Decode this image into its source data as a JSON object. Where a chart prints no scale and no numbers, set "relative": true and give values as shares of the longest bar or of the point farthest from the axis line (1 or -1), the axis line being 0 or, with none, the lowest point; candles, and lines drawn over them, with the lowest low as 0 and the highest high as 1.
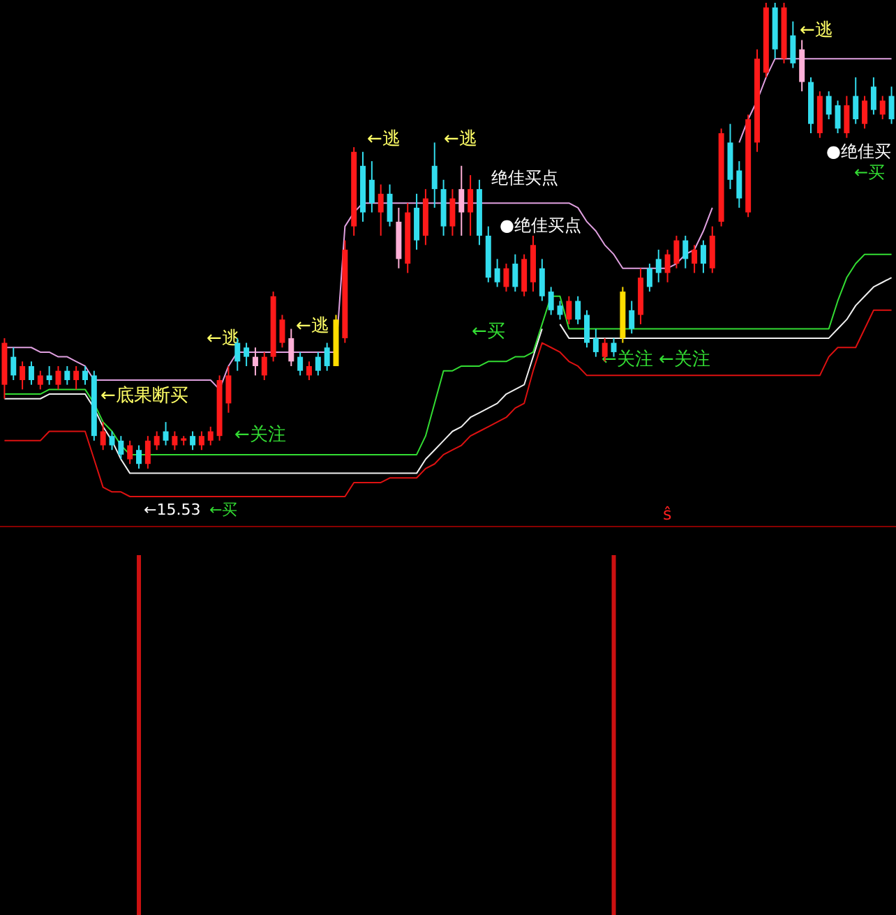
{
  "chart_data": [
    {
      "type": "candlestick",
      "relative": true,
      "categories": [
        null,
        null,
        null,
        null,
        null,
        null,
        null,
        null,
        null,
        null,
        null,
        null,
        null,
        null,
        null,
        null,
        null,
        null,
        null,
        null,
        null,
        null,
        null,
        null,
        null,
        null,
        null,
        null,
        null,
        null,
        null,
        null,
        null,
        null,
        null,
        null,
        null,
        null,
        null,
        null,
        null,
        null,
        null,
        null,
        null,
        null,
        null,
        null,
        null,
        null,
        null,
        null,
        null,
        null,
        null,
        null,
        null,
        null,
        null,
        null,
        null,
        null,
        null,
        null,
        null,
        null,
        null,
        null,
        null,
        null,
        null,
        null,
        null,
        null,
        null,
        null,
        null,
        null,
        null,
        null,
        null,
        null,
        null,
        null,
        null,
        null,
        null,
        null,
        null,
        null,
        null,
        null,
        null,
        null,
        null,
        null,
        null,
        null,
        null,
        null
      ],
      "ohlc": [
        [
          0.18,
          0.28,
          0.15,
          0.27
        ],
        [
          0.24,
          0.26,
          0.19,
          0.2
        ],
        [
          0.19,
          0.23,
          0.17,
          0.22
        ],
        [
          0.22,
          0.23,
          0.18,
          0.19
        ],
        [
          0.18,
          0.21,
          0.17,
          0.2
        ],
        [
          0.2,
          0.22,
          0.18,
          0.19
        ],
        [
          0.18,
          0.22,
          0.17,
          0.21
        ],
        [
          0.21,
          0.22,
          0.18,
          0.19
        ],
        [
          0.19,
          0.22,
          0.17,
          0.21
        ],
        [
          0.21,
          0.22,
          0.18,
          0.19
        ],
        [
          0.2,
          0.21,
          0.06,
          0.07
        ],
        [
          0.05,
          0.1,
          0.04,
          0.08
        ],
        [
          0.07,
          0.08,
          0.04,
          0.05
        ],
        [
          0.06,
          0.07,
          0.02,
          0.03
        ],
        [
          0.02,
          0.06,
          0.01,
          0.05
        ],
        [
          0.04,
          0.05,
          0,
          0.01
        ],
        [
          0.01,
          0.07,
          0,
          0.06
        ],
        [
          0.05,
          0.08,
          0.04,
          0.07
        ],
        [
          0.08,
          0.1,
          0.05,
          0.06
        ],
        [
          0.05,
          0.08,
          0.04,
          0.07
        ],
        [
          0.06,
          0.07,
          0.05,
          0.065
        ],
        [
          0.07,
          0.08,
          0.04,
          0.05
        ],
        [
          0.05,
          0.08,
          0.04,
          0.07
        ],
        [
          0.06,
          0.09,
          0.05,
          0.08
        ],
        [
          0.07,
          0.2,
          0.06,
          0.19
        ],
        [
          0.14,
          0.22,
          0.12,
          0.2
        ],
        [
          0.27,
          0.28,
          0.21,
          0.23
        ],
        [
          0.26,
          0.27,
          0.22,
          0.24
        ],
        [
          0.24,
          0.26,
          0.2,
          0.22
        ],
        [
          0.2,
          0.25,
          0.19,
          0.24
        ],
        [
          0.24,
          0.38,
          0.23,
          0.37
        ],
        [
          0.27,
          0.33,
          0.26,
          0.32
        ],
        [
          0.28,
          0.3,
          0.22,
          0.23
        ],
        [
          0.24,
          0.25,
          0.2,
          0.21
        ],
        [
          0.2,
          0.23,
          0.19,
          0.22
        ],
        [
          0.24,
          0.25,
          0.2,
          0.21
        ],
        [
          0.26,
          0.27,
          0.21,
          0.22
        ],
        [
          0.22,
          0.33,
          0.22,
          0.32
        ],
        [
          0.28,
          0.49,
          0.27,
          0.47
        ],
        [
          0.52,
          0.69,
          0.5,
          0.68
        ],
        [
          0.65,
          0.68,
          0.53,
          0.55
        ],
        [
          0.62,
          0.66,
          0.55,
          0.57
        ],
        [
          0.55,
          0.61,
          0.5,
          0.59
        ],
        [
          0.59,
          0.61,
          0.52,
          0.53
        ],
        [
          0.53,
          0.56,
          0.43,
          0.45
        ],
        [
          0.44,
          0.57,
          0.42,
          0.55
        ],
        [
          0.56,
          0.59,
          0.47,
          0.49
        ],
        [
          0.5,
          0.6,
          0.48,
          0.58
        ],
        [
          0.65,
          0.7,
          0.56,
          0.6
        ],
        [
          0.6,
          0.62,
          0.5,
          0.52
        ],
        [
          0.52,
          0.6,
          0.5,
          0.58
        ],
        [
          0.6,
          0.65,
          0.5,
          0.55
        ],
        [
          0.55,
          0.63,
          0.5,
          0.6
        ],
        [
          0.6,
          0.62,
          0.48,
          0.5
        ],
        [
          0.5,
          0.52,
          0.4,
          0.41
        ],
        [
          0.43,
          0.45,
          0.39,
          0.4
        ],
        [
          0.39,
          0.44,
          0.38,
          0.43
        ],
        [
          0.44,
          0.46,
          0.38,
          0.39
        ],
        [
          0.38,
          0.46,
          0.37,
          0.45
        ],
        [
          0.4,
          0.5,
          0.38,
          0.48
        ],
        [
          0.43,
          0.45,
          0.36,
          0.37
        ],
        [
          0.38,
          0.39,
          0.33,
          0.34
        ],
        [
          0.35,
          0.36,
          0.32,
          0.33
        ],
        [
          0.32,
          0.37,
          0.31,
          0.36
        ],
        [
          0.36,
          0.37,
          0.31,
          0.32
        ],
        [
          0.33,
          0.34,
          0.26,
          0.27
        ],
        [
          0.28,
          0.3,
          0.24,
          0.25
        ],
        [
          0.24,
          0.28,
          0.23,
          0.27
        ],
        [
          0.27,
          0.28,
          0.24,
          0.25
        ],
        [
          0.28,
          0.39,
          0.27,
          0.38
        ],
        [
          0.34,
          0.36,
          0.29,
          0.3
        ],
        [
          0.33,
          0.43,
          0.31,
          0.41
        ],
        [
          0.43,
          0.44,
          0.38,
          0.39
        ],
        [
          0.45,
          0.47,
          0.4,
          0.42
        ],
        [
          0.42,
          0.47,
          0.4,
          0.46
        ],
        [
          0.44,
          0.5,
          0.43,
          0.49
        ],
        [
          0.49,
          0.5,
          0.43,
          0.45
        ],
        [
          0.44,
          0.48,
          0.42,
          0.47
        ],
        [
          0.48,
          0.49,
          0.42,
          0.44
        ],
        [
          0.43,
          0.52,
          0.42,
          0.5
        ],
        [
          0.53,
          0.73,
          0.52,
          0.72
        ],
        [
          0.7,
          0.74,
          0.6,
          0.62
        ],
        [
          0.64,
          0.66,
          0.56,
          0.58
        ],
        [
          0.55,
          0.76,
          0.54,
          0.75
        ],
        [
          0.7,
          0.9,
          0.68,
          0.88
        ],
        [
          0.85,
          1,
          0.84,
          0.99
        ],
        [
          0.99,
          1,
          0.88,
          0.9
        ],
        [
          0.88,
          1,
          0.87,
          0.99
        ],
        [
          0.93,
          0.96,
          0.86,
          0.87
        ],
        [
          0.9,
          0.92,
          0.81,
          0.83
        ],
        [
          0.83,
          0.84,
          0.72,
          0.74
        ],
        [
          0.72,
          0.81,
          0.71,
          0.8
        ],
        [
          0.8,
          0.81,
          0.75,
          0.76
        ],
        [
          0.78,
          0.79,
          0.72,
          0.73
        ],
        [
          0.72,
          0.8,
          0.71,
          0.78
        ],
        [
          0.8,
          0.84,
          0.74,
          0.75
        ],
        [
          0.74,
          0.8,
          0.73,
          0.79
        ],
        [
          0.82,
          0.84,
          0.76,
          0.77
        ],
        [
          0.76,
          0.8,
          0.75,
          0.79
        ],
        [
          0.8,
          0.82,
          0.74,
          0.75
        ]
      ],
      "colors": [
        "#ff1a1a",
        "#33ddee",
        "#ff1a1a",
        "#33ddee",
        "#ff1a1a",
        "#33ddee",
        "#ff1a1a",
        "#33ddee",
        "#ff1a1a",
        "#33ddee",
        "#33ddee",
        "#ff1a1a",
        "#33ddee",
        "#33ddee",
        "#ff1a1a",
        "#33ddee",
        "#ff1a1a",
        "#ff1a1a",
        "#33ddee",
        "#ff1a1a",
        "#ff1a1a",
        "#33ddee",
        "#ff1a1a",
        "#ff1a1a",
        "#ff1a1a",
        "#ff1a1a",
        "#33ddee",
        "#33ddee",
        "#ffb0d8",
        "#ff1a1a",
        "#ff1a1a",
        "#ff1a1a",
        "#ffb0d8",
        "#33ddee",
        "#ff1a1a",
        "#33ddee",
        "#33ddee",
        "#ffdd00",
        "#ff1a1a",
        "#ff1a1a",
        "#33ddee",
        "#33ddee",
        "#ff1a1a",
        "#33ddee",
        "#ffb0d8",
        "#ff1a1a",
        "#33ddee",
        "#ff1a1a",
        "#33ddee",
        "#33ddee",
        "#ff1a1a",
        "#ffb0d8",
        "#ff1a1a",
        "#33ddee",
        "#33ddee",
        "#33ddee",
        "#ff1a1a",
        "#33ddee",
        "#ff1a1a",
        "#ff1a1a",
        "#33ddee",
        "#33ddee",
        "#33ddee",
        "#ff1a1a",
        "#33ddee",
        "#33ddee",
        "#33ddee",
        "#ff1a1a",
        "#33ddee",
        "#ffdd00",
        "#33ddee",
        "#ff1a1a",
        "#33ddee",
        "#33ddee",
        "#ff1a1a",
        "#ff1a1a",
        "#33ddee",
        "#ff1a1a",
        "#33ddee",
        "#ff1a1a",
        "#ff1a1a",
        "#33ddee",
        "#33ddee",
        "#ff1a1a",
        "#ff1a1a",
        "#ff1a1a",
        "#33ddee",
        "#ff1a1a",
        "#33ddee",
        "#ffb0d8",
        "#33ddee",
        "#ff1a1a",
        "#33ddee",
        "#33ddee",
        "#ff1a1a",
        "#33ddee",
        "#ff1a1a",
        "#33ddee",
        "#ff1a1a",
        "#33ddee"
      ],
      "series": [
        {
          "type": "line",
          "color": "#e0a0e0",
          "values": [
            0.26,
            0.26,
            0.26,
            0.26,
            0.25,
            0.25,
            0.24,
            0.24,
            0.23,
            0.22,
            0.19,
            0.19,
            0.19,
            0.19,
            0.19,
            0.19,
            0.19,
            0.19,
            0.19,
            0.19,
            0.19,
            0.19,
            0.19,
            0.19,
            0.17,
            0.22,
            0.25,
            0.25,
            0.25,
            0.25,
            0.25,
            0.25,
            0.25,
            0.25,
            0.25,
            0.25,
            0.25,
            0.25,
            0.52,
            0.55,
            0.57,
            0.57,
            0.57,
            0.57,
            0.57,
            0.57,
            0.57,
            0.57,
            0.57,
            0.57,
            0.57,
            0.57,
            0.57,
            0.57,
            0.57,
            0.57,
            0.57,
            0.57,
            0.57,
            0.57,
            0.57,
            0.57,
            0.57,
            0.57,
            0.56,
            0.53,
            0.51,
            0.48,
            0.46,
            0.43,
            0.43,
            0.43,
            0.43,
            0.43,
            0.43,
            0.44,
            0.46,
            0.47,
            0.51,
            0.56,
            null,
            null,
            0.7,
            0.75,
            0.79,
            0.84,
            0.88,
            0.88,
            0.88,
            0.88,
            0.88,
            0.88,
            0.88,
            0.88,
            0.88,
            0.88,
            0.88,
            0.88,
            0.88,
            0.88
          ]
        },
        {
          "type": "line",
          "color": "#33dd33",
          "values": [
            0.16,
            0.16,
            0.16,
            0.16,
            0.16,
            0.17,
            0.17,
            0.17,
            0.17,
            0.17,
            0.14,
            0.1,
            0.08,
            0.05,
            0.03,
            0.03,
            0.03,
            0.03,
            0.03,
            0.03,
            0.03,
            0.03,
            0.03,
            0.03,
            0.03,
            0.03,
            0.03,
            0.03,
            0.03,
            0.03,
            0.03,
            0.03,
            0.03,
            0.03,
            0.03,
            0.03,
            0.03,
            0.03,
            0.03,
            0.03,
            0.03,
            0.03,
            0.03,
            0.03,
            0.03,
            0.03,
            0.03,
            0.07,
            0.14,
            0.21,
            0.21,
            0.22,
            0.22,
            0.22,
            0.23,
            0.23,
            0.23,
            0.24,
            0.24,
            0.25,
            0.31,
            0.37,
            0.37,
            0.3,
            0.3,
            0.3,
            0.3,
            0.3,
            0.3,
            0.3,
            0.3,
            0.3,
            0.3,
            0.3,
            0.3,
            0.3,
            0.3,
            0.3,
            0.3,
            0.3,
            0.3,
            0.3,
            0.3,
            0.3,
            0.3,
            0.3,
            0.3,
            0.3,
            0.3,
            0.3,
            0.3,
            0.3,
            0.3,
            0.36,
            0.41,
            0.44,
            0.46,
            0.46,
            0.46,
            0.46
          ]
        },
        {
          "type": "line",
          "color": "#f0f0f0",
          "values": [
            0.15,
            0.15,
            0.15,
            0.15,
            0.15,
            0.16,
            0.16,
            0.16,
            0.16,
            0.16,
            0.13,
            0.09,
            0.06,
            0.02,
            -0.01,
            -0.01,
            -0.01,
            -0.01,
            -0.01,
            -0.01,
            -0.01,
            -0.01,
            -0.01,
            -0.01,
            -0.01,
            -0.01,
            -0.01,
            -0.01,
            -0.01,
            -0.01,
            -0.01,
            -0.01,
            -0.01,
            -0.01,
            -0.01,
            -0.01,
            -0.01,
            -0.01,
            -0.01,
            -0.01,
            -0.01,
            -0.01,
            -0.01,
            -0.01,
            -0.01,
            -0.01,
            -0.01,
            0.02,
            0.04,
            0.06,
            0.08,
            0.09,
            0.11,
            0.12,
            0.13,
            0.14,
            0.16,
            0.17,
            0.18,
            0.24,
            0.3,
            null,
            0.31,
            0.28,
            0.28,
            0.28,
            0.28,
            0.28,
            0.28,
            0.28,
            0.28,
            0.28,
            0.28,
            0.28,
            0.28,
            0.28,
            0.28,
            0.28,
            0.28,
            0.28,
            0.28,
            0.28,
            0.28,
            0.28,
            0.28,
            0.28,
            0.28,
            0.28,
            0.28,
            0.28,
            0.28,
            0.28,
            0.28,
            0.3,
            0.32,
            0.35,
            0.37,
            0.39,
            0.4,
            0.41
          ]
        },
        {
          "type": "line",
          "color": "#dd1111",
          "values": [
            0.06,
            0.06,
            0.06,
            0.06,
            0.06,
            0.08,
            0.08,
            0.08,
            0.08,
            0.08,
            0.02,
            -0.04,
            -0.05,
            -0.05,
            -0.06,
            -0.06,
            -0.06,
            -0.06,
            -0.06,
            -0.06,
            -0.06,
            -0.06,
            -0.06,
            -0.06,
            -0.06,
            -0.06,
            -0.06,
            -0.06,
            -0.06,
            -0.06,
            -0.06,
            -0.06,
            -0.06,
            -0.06,
            -0.06,
            -0.06,
            -0.06,
            -0.06,
            -0.06,
            -0.03,
            -0.03,
            -0.03,
            -0.03,
            -0.02,
            -0.02,
            -0.02,
            -0.02,
            0,
            0.01,
            0.03,
            0.04,
            0.05,
            0.07,
            0.08,
            0.09,
            0.1,
            0.11,
            0.13,
            0.14,
            0.21,
            0.27,
            0.26,
            0.25,
            0.23,
            0.22,
            0.2,
            0.2,
            0.2,
            0.2,
            0.2,
            0.2,
            0.2,
            0.2,
            0.2,
            0.2,
            0.2,
            0.2,
            0.2,
            0.2,
            0.2,
            0.2,
            0.2,
            0.2,
            0.2,
            0.2,
            0.2,
            0.2,
            0.2,
            0.2,
            0.2,
            0.2,
            0.2,
            0.24,
            0.26,
            0.26,
            0.26,
            0.3,
            0.34,
            0.34,
            0.34
          ]
        }
      ],
      "annotations": [
        "←底果断买",
        "←买",
        "←15.53",
        "←关注",
        "←逃",
        "←逃",
        "←逃",
        "←逃",
        "绝佳买点",
        "●绝佳买点",
        "←买",
        "←关注",
        "←关注",
        "←逃",
        "●绝佳买",
        "←买",
        "ŝ"
      ]
    },
    {
      "type": "bar",
      "relative": true,
      "categories": [
        null,
        null,
        null,
        null,
        null,
        null,
        null,
        null,
        null,
        null,
        null,
        null,
        null,
        null,
        null,
        null,
        null,
        null,
        null,
        null,
        null,
        null,
        null,
        null,
        null,
        null,
        null,
        null,
        null,
        null,
        null,
        null,
        null,
        null,
        null,
        null,
        null,
        null,
        null,
        null,
        null,
        null,
        null,
        null,
        null,
        null,
        null,
        null,
        null,
        null,
        null,
        null,
        null,
        null,
        null,
        null,
        null,
        null,
        null,
        null,
        null,
        null,
        null,
        null,
        null,
        null,
        null,
        null,
        null,
        null,
        null,
        null,
        null,
        null,
        null,
        null,
        null,
        null,
        null,
        null,
        null,
        null,
        null,
        null,
        null,
        null,
        null,
        null,
        null,
        null,
        null,
        null,
        null,
        null,
        null,
        null,
        null,
        null,
        null,
        null
      ],
      "values": [
        null,
        null,
        null,
        null,
        null,
        null,
        null,
        null,
        null,
        null,
        null,
        null,
        null,
        null,
        null,
        1,
        null,
        null,
        null,
        null,
        null,
        null,
        null,
        null,
        null,
        null,
        null,
        null,
        null,
        null,
        null,
        null,
        null,
        null,
        null,
        null,
        null,
        null,
        null,
        null,
        null,
        null,
        null,
        null,
        null,
        null,
        null,
        null,
        null,
        null,
        null,
        null,
        null,
        null,
        null,
        null,
        null,
        null,
        null,
        null,
        null,
        null,
        null,
        null,
        null,
        null,
        null,
        null,
        1,
        null,
        null,
        null,
        null,
        null,
        null,
        null,
        null,
        null,
        null,
        null,
        null,
        null,
        null,
        null,
        null,
        null,
        null,
        null,
        null,
        null,
        null,
        null,
        null,
        null,
        null,
        null,
        null,
        null,
        null,
        null
      ],
      "color": "#cc1111"
    }
  ]
}
